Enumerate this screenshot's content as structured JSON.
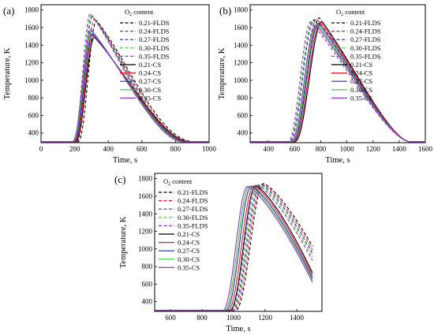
{
  "panels": [
    {
      "panel_label": "(a)",
      "chart_data": {
        "type": "line",
        "xlabel": "Time, s",
        "ylabel": "Temperature, K",
        "xlim": [
          0,
          1000
        ],
        "ylim": [
          290,
          1860
        ],
        "xticks": [
          0,
          200,
          400,
          600,
          800,
          1000
        ],
        "yticks": [
          400,
          600,
          800,
          1000,
          1200,
          1400,
          1600,
          1800
        ],
        "legend_title": "O2 content",
        "legend_position": "top-right",
        "series": [
          {
            "name": "0.21-FLDS",
            "color": "#000000",
            "dash": true,
            "onset": 220,
            "peak_x": 330,
            "peak_y": 1680,
            "end": 920,
            "tail_shape": 2.2
          },
          {
            "name": "0.24-FLDS",
            "color": "#e8192c",
            "dash": true,
            "onset": 212,
            "peak_x": 318,
            "peak_y": 1700,
            "end": 905,
            "tail_shape": 2.2
          },
          {
            "name": "0.27-FLDS",
            "color": "#2a2ab8",
            "dash": true,
            "onset": 204,
            "peak_x": 306,
            "peak_y": 1730,
            "end": 890,
            "tail_shape": 2.2
          },
          {
            "name": "0.30-FLDS",
            "color": "#33cc33",
            "dash": true,
            "onset": 198,
            "peak_x": 300,
            "peak_y": 1745,
            "end": 880,
            "tail_shape": 2.2
          },
          {
            "name": "0.35-FLDS",
            "color": "#9933cc",
            "dash": true,
            "onset": 192,
            "peak_x": 294,
            "peak_y": 1760,
            "end": 870,
            "tail_shape": 2.2
          },
          {
            "name": "0.21-CS",
            "color": "#000000",
            "dash": false,
            "onset": 205,
            "peak_x": 318,
            "peak_y": 1490,
            "end": 880,
            "tail_shape": 1.8
          },
          {
            "name": "0.24-CS",
            "color": "#e8192c",
            "dash": false,
            "onset": 200,
            "peak_x": 312,
            "peak_y": 1510,
            "end": 870,
            "tail_shape": 1.8
          },
          {
            "name": "0.27-CS",
            "color": "#2a2ab8",
            "dash": false,
            "onset": 195,
            "peak_x": 306,
            "peak_y": 1530,
            "end": 860,
            "tail_shape": 1.8
          },
          {
            "name": "0.30-CS",
            "color": "#33cc33",
            "dash": false,
            "onset": 190,
            "peak_x": 302,
            "peak_y": 1560,
            "end": 850,
            "tail_shape": 1.8
          },
          {
            "name": "0.35-CS",
            "color": "#9933cc",
            "dash": false,
            "onset": 186,
            "peak_x": 298,
            "peak_y": 1575,
            "end": 840,
            "tail_shape": 1.8
          }
        ]
      }
    },
    {
      "panel_label": "(b)",
      "chart_data": {
        "type": "line",
        "xlabel": "Time, s",
        "ylabel": "Temperature, K",
        "xlim": [
          260,
          1600
        ],
        "ylim": [
          290,
          1860
        ],
        "xticks": [
          400,
          600,
          800,
          1000,
          1200,
          1400,
          1600
        ],
        "yticks": [
          400,
          600,
          800,
          1000,
          1200,
          1400,
          1600,
          1800
        ],
        "legend_title": "O2 content",
        "legend_position": "top-right",
        "series": [
          {
            "name": "0.21-FLDS",
            "color": "#000000",
            "dash": true,
            "onset": 580,
            "peak_x": 790,
            "peak_y": 1710,
            "end": 1480,
            "tail_shape": 1.6
          },
          {
            "name": "0.24-FLDS",
            "color": "#e8192c",
            "dash": true,
            "onset": 570,
            "peak_x": 770,
            "peak_y": 1700,
            "end": 1480,
            "tail_shape": 1.6
          },
          {
            "name": "0.27-FLDS",
            "color": "#2a2ab8",
            "dash": true,
            "onset": 560,
            "peak_x": 750,
            "peak_y": 1690,
            "end": 1480,
            "tail_shape": 1.6
          },
          {
            "name": "0.30-FLDS",
            "color": "#33cc33",
            "dash": true,
            "onset": 555,
            "peak_x": 740,
            "peak_y": 1680,
            "end": 1480,
            "tail_shape": 1.6
          },
          {
            "name": "0.35-FLDS",
            "color": "#9933cc",
            "dash": true,
            "onset": 548,
            "peak_x": 725,
            "peak_y": 1670,
            "end": 1480,
            "tail_shape": 1.6
          },
          {
            "name": "0.21-CS",
            "color": "#000000",
            "dash": false,
            "onset": 600,
            "peak_x": 810,
            "peak_y": 1670,
            "end": 1480,
            "tail_shape": 1.6
          },
          {
            "name": "0.24-CS",
            "color": "#e8192c",
            "dash": false,
            "onset": 592,
            "peak_x": 800,
            "peak_y": 1660,
            "end": 1480,
            "tail_shape": 1.6
          },
          {
            "name": "0.27-CS",
            "color": "#2a2ab8",
            "dash": false,
            "onset": 585,
            "peak_x": 785,
            "peak_y": 1650,
            "end": 1480,
            "tail_shape": 1.6
          },
          {
            "name": "0.30-CS",
            "color": "#33cc33",
            "dash": false,
            "onset": 578,
            "peak_x": 775,
            "peak_y": 1640,
            "end": 1480,
            "tail_shape": 1.6
          },
          {
            "name": "0.35-CS",
            "color": "#9933cc",
            "dash": false,
            "onset": 570,
            "peak_x": 765,
            "peak_y": 1630,
            "end": 1480,
            "tail_shape": 1.6
          }
        ]
      }
    },
    {
      "panel_label": "(c)",
      "chart_data": {
        "type": "line",
        "xlabel": "Time, s",
        "ylabel": "Temperature, K",
        "xlim": [
          500,
          1560
        ],
        "ylim": [
          290,
          1860
        ],
        "xticks": [
          600,
          800,
          1000,
          1200,
          1400
        ],
        "yticks": [
          400,
          600,
          800,
          1000,
          1200,
          1400,
          1600,
          1800
        ],
        "legend_title": "O2 content",
        "legend_position": "top-left",
        "series": [
          {
            "name": "0.21-FLDS",
            "color": "#000000",
            "dash": true,
            "onset": 1010,
            "peak_x": 1190,
            "peak_y": 1745,
            "end_x": 1500,
            "end_y": 1030
          },
          {
            "name": "0.24-FLDS",
            "color": "#e8192c",
            "dash": true,
            "onset": 1000,
            "peak_x": 1180,
            "peak_y": 1740,
            "end_x": 1500,
            "end_y": 990
          },
          {
            "name": "0.27-FLDS",
            "color": "#2a2ab8",
            "dash": true,
            "onset": 990,
            "peak_x": 1170,
            "peak_y": 1735,
            "end_x": 1500,
            "end_y": 950
          },
          {
            "name": "0.30-FLDS",
            "color": "#33cc33",
            "dash": true,
            "onset": 985,
            "peak_x": 1160,
            "peak_y": 1730,
            "end_x": 1500,
            "end_y": 910
          },
          {
            "name": "0.35-FLDS",
            "color": "#9933cc",
            "dash": true,
            "onset": 978,
            "peak_x": 1150,
            "peak_y": 1725,
            "end_x": 1500,
            "end_y": 870
          },
          {
            "name": "0.21-CS",
            "color": "#000000",
            "dash": false,
            "onset": 975,
            "peak_x": 1140,
            "peak_y": 1720,
            "end_x": 1500,
            "end_y": 730
          },
          {
            "name": "0.24-CS",
            "color": "#e8192c",
            "dash": false,
            "onset": 962,
            "peak_x": 1128,
            "peak_y": 1718,
            "end_x": 1500,
            "end_y": 700
          },
          {
            "name": "0.27-CS",
            "color": "#2a2ab8",
            "dash": false,
            "onset": 950,
            "peak_x": 1112,
            "peak_y": 1716,
            "end_x": 1500,
            "end_y": 670
          },
          {
            "name": "0.30-CS",
            "color": "#33cc33",
            "dash": false,
            "onset": 940,
            "peak_x": 1100,
            "peak_y": 1714,
            "end_x": 1500,
            "end_y": 645
          },
          {
            "name": "0.35-CS",
            "color": "#9933cc",
            "dash": false,
            "onset": 930,
            "peak_x": 1088,
            "peak_y": 1712,
            "end_x": 1500,
            "end_y": 620
          }
        ]
      }
    }
  ],
  "baseline_temperature": 300
}
